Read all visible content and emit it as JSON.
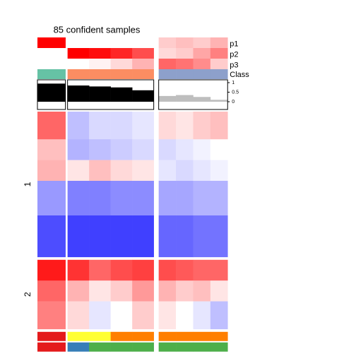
{
  "chart_data": {
    "type": "heatmap",
    "title": "85 confident samples",
    "samples": [
      13,
      10,
      10,
      10,
      10,
      8,
      8,
      8,
      8
    ],
    "annotations": [
      {
        "name": "p1",
        "values": [
          1,
          0,
          0,
          0,
          0,
          0.2,
          0.25,
          0.2,
          0.3
        ]
      },
      {
        "name": "p2",
        "values": [
          0,
          1,
          0.95,
          0.85,
          0.7,
          0.15,
          0.2,
          0.35,
          0.5
        ]
      },
      {
        "name": "p3",
        "values": [
          0,
          0,
          0.05,
          0.15,
          0.3,
          0.6,
          0.55,
          0.45,
          0.2
        ]
      }
    ],
    "probability_colors": [
      "#ffffff",
      "#ff0000"
    ],
    "class": {
      "name": "Class",
      "values": [
        1,
        2,
        2,
        2,
        2,
        3,
        3,
        3,
        3
      ],
      "colors": [
        "#66c2a5",
        "#fc8d62",
        "#8da0cb"
      ]
    },
    "silhouette": {
      "values": [
        0.95,
        0.85,
        0.8,
        0.75,
        0.6,
        0.3,
        0.35,
        0.25,
        0.1
      ],
      "colors": [
        "#000000",
        "#000000",
        "#000000",
        "#000000",
        "#000000",
        "#bebebe",
        "#bebebe",
        "#bebebe",
        "#bebebe"
      ],
      "ylim": [
        0,
        1
      ],
      "yticks": [
        0,
        0.5,
        1
      ]
    },
    "row_groups": {
      "labels": [
        "1",
        "2"
      ],
      "row_class": [
        1,
        1,
        1,
        1,
        1,
        2,
        2,
        2
      ],
      "rows": [
        8,
        6,
        6,
        10,
        12,
        6,
        6,
        8
      ]
    },
    "matrix": [
      [
        1.2,
        -0.5,
        -0.3,
        -0.3,
        -0.2,
        0.3,
        0.2,
        0.4,
        0.5
      ],
      [
        0.5,
        -0.6,
        -0.5,
        -0.4,
        -0.3,
        -0.3,
        -0.2,
        -0.1,
        0
      ],
      [
        0.6,
        0.2,
        0.5,
        0.3,
        0.2,
        -0.2,
        -0.3,
        -0.2,
        -0.1
      ],
      [
        -0.8,
        -1,
        -1,
        -0.9,
        -0.9,
        -0.7,
        -0.7,
        -0.6,
        -0.6
      ],
      [
        -1.4,
        -1.5,
        -1.5,
        -1.5,
        -1.5,
        -1.2,
        -1.2,
        -1.1,
        -1.1
      ],
      [
        1.8,
        1.6,
        1.2,
        1.4,
        1.5,
        1.4,
        1.3,
        1.2,
        1.2
      ],
      [
        1.2,
        0.6,
        0.2,
        0.4,
        0.8,
        0.6,
        0.4,
        0.5,
        0.2
      ],
      [
        1,
        0.3,
        -0.2,
        0,
        0.4,
        0.2,
        0,
        -0.2,
        -0.5
      ]
    ],
    "color_scale": {
      "colors": [
        "#0000ff",
        "#ffffff",
        "#ff0000"
      ],
      "lim": [
        -2,
        2
      ]
    },
    "bottom_annotations": [
      [
        "#e41a1c",
        "#ffff33",
        "#ffff33",
        "#ff7f00",
        "#ff7f00",
        "#ff7f00",
        "#ff7f00",
        "#ff7f00",
        "#ff7f00"
      ],
      [
        "#e41a1c",
        "#377eb8",
        "#4daf4a",
        "#4daf4a",
        "#4daf4a",
        "#4daf4a",
        "#4daf4a",
        "#4daf4a",
        "#4daf4a"
      ]
    ]
  }
}
